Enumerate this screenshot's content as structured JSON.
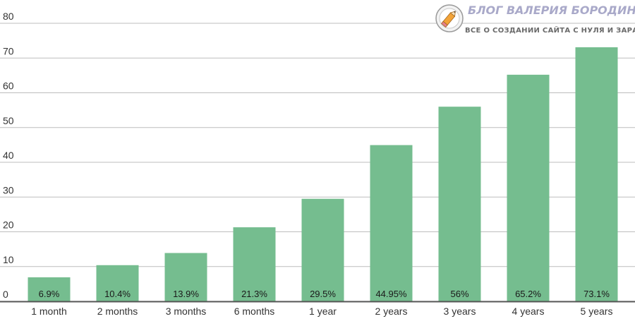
{
  "chart_data": {
    "type": "bar",
    "categories": [
      "1 month",
      "2 months",
      "3 months",
      "6 months",
      "1 year",
      "2 years",
      "3 years",
      "4 years",
      "5 years"
    ],
    "values": [
      6.9,
      10.4,
      13.9,
      21.3,
      29.5,
      44.95,
      56,
      65.2,
      73.1
    ],
    "data_labels": [
      "6.9%",
      "10.4%",
      "13.9%",
      "21.3%",
      "29.5%",
      "44.95%",
      "56%",
      "65.2%",
      "73.1%"
    ],
    "yticks": [
      0,
      10,
      20,
      30,
      40,
      50,
      60,
      70,
      80
    ],
    "ylim": [
      0,
      80
    ],
    "grid": true,
    "bar_color": "#75bd8f",
    "grid_color": "#bdbdbd",
    "axis_color": "#555555"
  },
  "watermark": {
    "title": "БЛОГ ВАЛЕРИЯ БОРОДИНА – PRIBYLUM.RU",
    "subtitle": "ВСЕ О СОЗДАНИИ САЙТА С НУЛЯ И ЗАРАБОТКЕ НА НЕМ",
    "logo": "pencil-logo"
  }
}
